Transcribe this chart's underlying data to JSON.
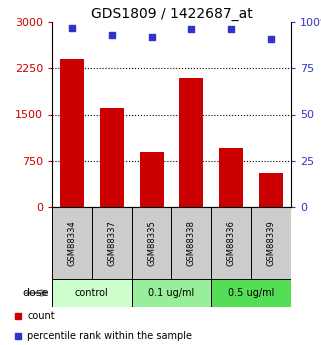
{
  "title": "GDS1809 / 1422687_at",
  "categories": [
    "GSM88334",
    "GSM88337",
    "GSM88335",
    "GSM88338",
    "GSM88336",
    "GSM88339"
  ],
  "bar_values": [
    2400,
    1600,
    900,
    2100,
    950,
    550
  ],
  "dot_values": [
    97,
    93,
    92,
    96,
    96,
    91
  ],
  "bar_color": "#cc0000",
  "dot_color": "#3333cc",
  "left_ylim": [
    0,
    3000
  ],
  "right_ylim": [
    0,
    100
  ],
  "left_yticks": [
    0,
    750,
    1500,
    2250,
    3000
  ],
  "left_yticklabels": [
    "0",
    "750",
    "1500",
    "2250",
    "3000"
  ],
  "right_yticks": [
    0,
    25,
    50,
    75,
    100
  ],
  "right_yticklabels": [
    "0",
    "25",
    "50",
    "75",
    "100%"
  ],
  "dose_labels": [
    "control",
    "0.1 ug/ml",
    "0.5 ug/ml"
  ],
  "dose_groups": [
    2,
    2,
    2
  ],
  "dose_colors": [
    "#ccffcc",
    "#99ee99",
    "#55dd55"
  ],
  "dose_label_text": "dose",
  "legend_count": "count",
  "legend_percentile": "percentile rank within the sample",
  "grid_yticks": [
    750,
    1500,
    2250
  ],
  "background_color": "#ffffff",
  "label_color_left": "#cc0000",
  "label_color_right": "#3333cc",
  "sample_box_color": "#cccccc",
  "tick_fontsize": 8,
  "title_fontsize": 10
}
